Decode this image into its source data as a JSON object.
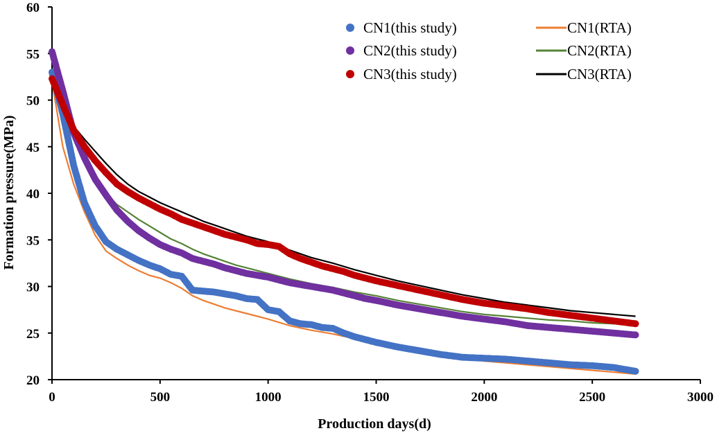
{
  "chart_data": {
    "type": "line",
    "title": "",
    "xlabel": "Production days(d)",
    "ylabel": "Formation pressure(MPa)",
    "xlim": [
      0,
      3000
    ],
    "ylim": [
      20,
      60
    ],
    "xticks": [
      0,
      500,
      1000,
      1500,
      2000,
      2500,
      3000
    ],
    "yticks": [
      20,
      25,
      30,
      35,
      40,
      45,
      50,
      55,
      60
    ],
    "grid": false,
    "legend": "top-right",
    "series": [
      {
        "name": "CN1(this study)",
        "style": "dots",
        "color": "#4472C4",
        "x": [
          0,
          50,
          100,
          150,
          200,
          250,
          300,
          350,
          400,
          450,
          500,
          550,
          600,
          650,
          700,
          750,
          800,
          850,
          900,
          950,
          1000,
          1050,
          1100,
          1150,
          1200,
          1250,
          1300,
          1350,
          1400,
          1450,
          1500,
          1600,
          1700,
          1800,
          1900,
          2000,
          2100,
          2200,
          2300,
          2400,
          2500,
          2600,
          2700
        ],
        "y": [
          53.0,
          48.5,
          43.0,
          39.0,
          36.5,
          34.8,
          34.0,
          33.4,
          32.8,
          32.3,
          31.9,
          31.3,
          31.1,
          29.6,
          29.5,
          29.4,
          29.2,
          29.0,
          28.7,
          28.6,
          27.5,
          27.3,
          26.3,
          26.0,
          25.9,
          25.6,
          25.5,
          25.0,
          24.6,
          24.3,
          24.0,
          23.5,
          23.1,
          22.7,
          22.4,
          22.3,
          22.2,
          22.0,
          21.8,
          21.6,
          21.5,
          21.3,
          20.9
        ]
      },
      {
        "name": "CN2(this study)",
        "style": "dots",
        "color": "#7030A0",
        "x": [
          0,
          50,
          100,
          150,
          200,
          250,
          300,
          350,
          400,
          450,
          500,
          550,
          600,
          650,
          700,
          750,
          800,
          850,
          900,
          950,
          1000,
          1050,
          1100,
          1150,
          1200,
          1250,
          1300,
          1350,
          1400,
          1450,
          1500,
          1600,
          1700,
          1800,
          1900,
          2000,
          2100,
          2200,
          2300,
          2400,
          2500,
          2600,
          2700
        ],
        "y": [
          55.2,
          51.0,
          46.5,
          43.8,
          41.5,
          39.8,
          38.2,
          37.0,
          36.0,
          35.2,
          34.5,
          34.0,
          33.6,
          33.0,
          32.7,
          32.4,
          32.0,
          31.7,
          31.4,
          31.2,
          31.0,
          30.7,
          30.4,
          30.2,
          30.0,
          29.8,
          29.6,
          29.3,
          29.0,
          28.7,
          28.5,
          28.0,
          27.6,
          27.2,
          26.8,
          26.5,
          26.2,
          25.8,
          25.6,
          25.4,
          25.2,
          25.0,
          24.8
        ]
      },
      {
        "name": "CN3(this study)",
        "style": "dots",
        "color": "#C00000",
        "x": [
          0,
          50,
          100,
          150,
          200,
          250,
          300,
          350,
          400,
          450,
          500,
          550,
          600,
          650,
          700,
          750,
          800,
          850,
          900,
          950,
          1000,
          1050,
          1100,
          1150,
          1200,
          1250,
          1300,
          1350,
          1400,
          1450,
          1500,
          1600,
          1700,
          1800,
          1900,
          2000,
          2100,
          2200,
          2300,
          2400,
          2500,
          2600,
          2700
        ],
        "y": [
          52.3,
          49.5,
          46.8,
          45.0,
          43.5,
          42.2,
          41.0,
          40.2,
          39.5,
          38.9,
          38.3,
          37.8,
          37.2,
          36.8,
          36.4,
          36.0,
          35.6,
          35.3,
          35.0,
          34.6,
          34.5,
          34.3,
          33.5,
          33.0,
          32.6,
          32.2,
          31.9,
          31.6,
          31.2,
          30.9,
          30.6,
          30.1,
          29.6,
          29.1,
          28.6,
          28.2,
          27.9,
          27.6,
          27.2,
          26.9,
          26.6,
          26.3,
          26.0
        ]
      },
      {
        "name": "CN1(RTA)",
        "style": "line",
        "color": "#ED7D31",
        "x": [
          0,
          50,
          100,
          150,
          200,
          250,
          300,
          350,
          400,
          450,
          500,
          550,
          600,
          650,
          700,
          750,
          800,
          850,
          900,
          950,
          1000,
          1100,
          1200,
          1300,
          1400,
          1500,
          1600,
          1700,
          1800,
          1900,
          2000,
          2100,
          2200,
          2300,
          2400,
          2500,
          2600,
          2700
        ],
        "y": [
          52.0,
          45.0,
          41.0,
          38.0,
          35.5,
          33.8,
          33.0,
          32.3,
          31.7,
          31.2,
          30.9,
          30.4,
          29.8,
          29.0,
          28.5,
          28.1,
          27.7,
          27.4,
          27.1,
          26.8,
          26.5,
          25.8,
          25.3,
          24.9,
          24.4,
          24.0,
          23.5,
          23.1,
          22.7,
          22.3,
          22.0,
          21.8,
          21.6,
          21.4,
          21.2,
          21.0,
          20.8,
          20.6
        ]
      },
      {
        "name": "CN2(RTA)",
        "style": "line",
        "color": "#548235",
        "x": [
          0,
          50,
          100,
          150,
          200,
          250,
          300,
          350,
          400,
          450,
          500,
          550,
          600,
          650,
          700,
          750,
          800,
          850,
          900,
          950,
          1000,
          1100,
          1200,
          1300,
          1400,
          1500,
          1600,
          1700,
          1800,
          1900,
          2000,
          2100,
          2200,
          2300,
          2400,
          2500,
          2600,
          2700
        ],
        "y": [
          54.5,
          50.0,
          46.5,
          43.8,
          41.5,
          40.0,
          38.8,
          38.0,
          37.2,
          36.5,
          35.8,
          35.1,
          34.6,
          34.0,
          33.5,
          33.1,
          32.7,
          32.3,
          32.0,
          31.7,
          31.4,
          30.8,
          30.3,
          29.9,
          29.4,
          29.0,
          28.5,
          28.1,
          27.7,
          27.3,
          27.0,
          26.8,
          26.6,
          26.4,
          26.3,
          26.1,
          26.0,
          25.9
        ]
      },
      {
        "name": "CN3(RTA)",
        "style": "line",
        "color": "#000000",
        "x": [
          0,
          50,
          100,
          150,
          200,
          250,
          300,
          350,
          400,
          450,
          500,
          550,
          600,
          650,
          700,
          750,
          800,
          850,
          900,
          950,
          1000,
          1100,
          1200,
          1300,
          1400,
          1500,
          1600,
          1700,
          1800,
          1900,
          2000,
          2100,
          2200,
          2300,
          2400,
          2500,
          2600,
          2700
        ],
        "y": [
          52.5,
          50.0,
          47.2,
          45.8,
          44.5,
          43.2,
          42.0,
          41.0,
          40.2,
          39.6,
          39.0,
          38.5,
          38.0,
          37.5,
          37.0,
          36.6,
          36.2,
          35.8,
          35.4,
          35.1,
          34.8,
          33.9,
          33.1,
          32.5,
          31.8,
          31.2,
          30.6,
          30.1,
          29.6,
          29.1,
          28.7,
          28.3,
          28.0,
          27.7,
          27.4,
          27.2,
          27.0,
          26.8
        ]
      }
    ]
  }
}
